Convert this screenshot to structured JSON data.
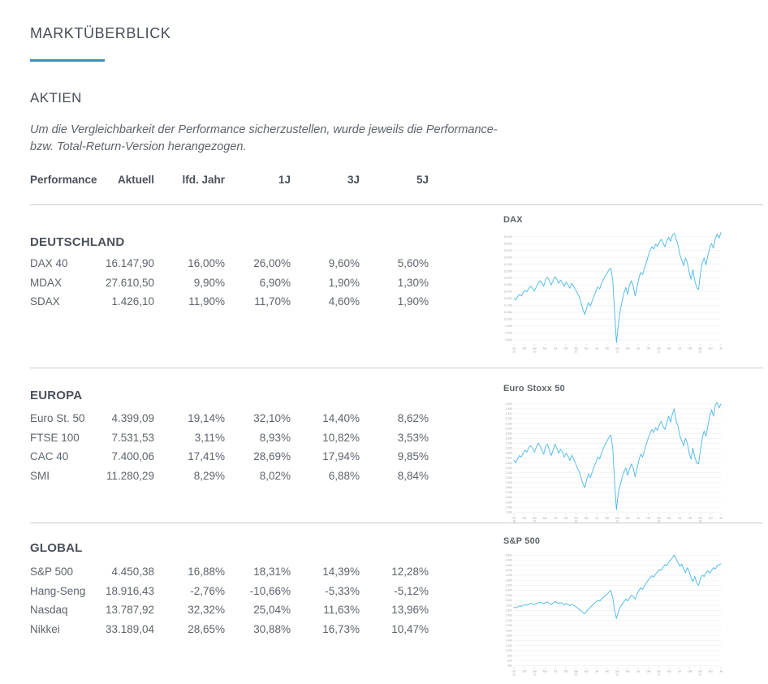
{
  "page": {
    "title": "MARKTÜBERBLICK",
    "section_title": "AKTIEN",
    "disclaimer_line1": "Um die Vergleichbarkeit der Performance sicherzustellen, wurde jeweils die Performance-",
    "disclaimer_line2": "bzw. Total-Return-Version herangezogen.",
    "accent_color": "#4189cf"
  },
  "table": {
    "headers": [
      "Performance",
      "Aktuell",
      "lfd. Jahr",
      "1J",
      "3J",
      "5J"
    ],
    "sections": [
      {
        "name": "DEUTSCHLAND",
        "rows": [
          [
            "DAX 40",
            "16.147,90",
            "16,00%",
            "26,00%",
            "9,60%",
            "5,60%"
          ],
          [
            "MDAX",
            "27.610,50",
            "9,90%",
            "6,90%",
            "1,90%",
            "1,30%"
          ],
          [
            "SDAX",
            "1.426,10",
            "11,90%",
            "11,70%",
            "4,60%",
            "1,90%"
          ]
        ]
      },
      {
        "name": "EUROPA",
        "rows": [
          [
            "Euro St. 50",
            "4.399,09",
            "19,14%",
            "32,10%",
            "14,40%",
            "8,62%"
          ],
          [
            "FTSE 100",
            "7.531,53",
            "3,11%",
            "8,93%",
            "10,82%",
            "3,53%"
          ],
          [
            "CAC 40",
            "7.400,06",
            "17,41%",
            "28,69%",
            "17,94%",
            "9,85%"
          ],
          [
            "SMI",
            "11.280,29",
            "8,29%",
            "8,02%",
            "6,88%",
            "8,84%"
          ]
        ]
      },
      {
        "name": "GLOBAL",
        "rows": [
          [
            "S&P 500",
            "4.450,38",
            "16,88%",
            "18,31%",
            "14,39%",
            "12,28%"
          ],
          [
            "Hang-Seng",
            "18.916,43",
            "-2,76%",
            "-10,66%",
            "-5,33%",
            "-5,12%"
          ],
          [
            "Nasdaq",
            "13.787,92",
            "32,32%",
            "25,04%",
            "11,63%",
            "13,96%"
          ],
          [
            "Nikkei",
            "33.189,04",
            "28,65%",
            "30,88%",
            "16,73%",
            "10,47%"
          ]
        ]
      }
    ]
  },
  "chart_data": [
    {
      "type": "line",
      "title": "DAX",
      "xlabel": "",
      "ylabel": "",
      "color": "#46b8e5",
      "grid": true,
      "legend": "none",
      "y_min": 8200,
      "y_max": 16450,
      "y_ticks": [
        16000,
        15500,
        15000,
        14500,
        14000,
        13500,
        13000,
        12500,
        12000,
        11500,
        11000,
        10500,
        10000,
        9500,
        9000,
        8500
      ],
      "x_ticks": [
        {
          "m": "Jul",
          "y": "18"
        },
        {
          "m": "Okt",
          "y": ""
        },
        {
          "m": "Jan",
          "y": "19"
        },
        {
          "m": "Apr",
          "y": ""
        },
        {
          "m": "Jul",
          "y": ""
        },
        {
          "m": "Okt",
          "y": ""
        },
        {
          "m": "Jan",
          "y": "20"
        },
        {
          "m": "Apr",
          "y": ""
        },
        {
          "m": "Jul",
          "y": ""
        },
        {
          "m": "Okt",
          "y": ""
        },
        {
          "m": "Jan",
          "y": "21"
        },
        {
          "m": "Apr",
          "y": ""
        },
        {
          "m": "Jul",
          "y": ""
        },
        {
          "m": "Okt",
          "y": ""
        },
        {
          "m": "Jan",
          "y": "22"
        },
        {
          "m": "Apr",
          "y": ""
        },
        {
          "m": "Jul",
          "y": ""
        },
        {
          "m": "Okt",
          "y": ""
        },
        {
          "m": "Jan",
          "y": "23"
        },
        {
          "m": "Apr",
          "y": ""
        },
        {
          "m": "Jul",
          "y": ""
        }
      ],
      "series": {
        "name": "DAX",
        "values": [
          11500,
          11400,
          11650,
          11800,
          11700,
          11950,
          12100,
          12000,
          12250,
          12400,
          12250,
          12050,
          12350,
          12600,
          12800,
          12650,
          12400,
          12900,
          13050,
          12800,
          12500,
          12800,
          13100,
          12900,
          12600,
          12850,
          12650,
          12400,
          12700,
          12500,
          12250,
          12600,
          12400,
          12150,
          11900,
          11650,
          11200,
          10700,
          10350,
          10800,
          11200,
          10950,
          11350,
          11700,
          12050,
          12350,
          12200,
          12600,
          12900,
          13150,
          13350,
          13600,
          13700,
          12800,
          10500,
          8300,
          9600,
          10600,
          11300,
          11900,
          12300,
          11800,
          12500,
          12800,
          12400,
          11700,
          12300,
          13000,
          13400,
          13250,
          13700,
          14100,
          14600,
          15000,
          15250,
          15100,
          15450,
          15300,
          15600,
          15800,
          15550,
          15250,
          15700,
          15950,
          15650,
          16100,
          16250,
          15800,
          15400,
          14700,
          14300,
          13900,
          14450,
          14100,
          13400,
          12900,
          13600,
          12800,
          12300,
          12150,
          13300,
          14100,
          14450,
          13950,
          14600,
          15200,
          15500,
          15150,
          15850,
          16200,
          15900,
          16300
        ]
      }
    },
    {
      "type": "line",
      "title": "Euro Stoxx 50",
      "xlabel": "",
      "ylabel": "",
      "color": "#46b8e5",
      "grid": true,
      "legend": "none",
      "y_min": 2270,
      "y_max": 4580,
      "y_ticks": [
        4500,
        4400,
        4300,
        4200,
        4100,
        4000,
        3900,
        3800,
        3700,
        3600,
        3500,
        3400,
        3300,
        3200,
        3100,
        3000,
        2900,
        2800,
        2700,
        2600,
        2500,
        2400,
        2300
      ],
      "x_ticks": [
        {
          "m": "Jul",
          "y": "18"
        },
        {
          "m": "Okt",
          "y": ""
        },
        {
          "m": "Jan",
          "y": "19"
        },
        {
          "m": "Apr",
          "y": ""
        },
        {
          "m": "Jul",
          "y": ""
        },
        {
          "m": "Okt",
          "y": ""
        },
        {
          "m": "Jan",
          "y": "20"
        },
        {
          "m": "Apr",
          "y": ""
        },
        {
          "m": "Jul",
          "y": ""
        },
        {
          "m": "Okt",
          "y": ""
        },
        {
          "m": "Jan",
          "y": "21"
        },
        {
          "m": "Apr",
          "y": ""
        },
        {
          "m": "Jul",
          "y": ""
        },
        {
          "m": "Okt",
          "y": ""
        },
        {
          "m": "Jan",
          "y": "22"
        },
        {
          "m": "Apr",
          "y": ""
        },
        {
          "m": "Jul",
          "y": ""
        },
        {
          "m": "Okt",
          "y": ""
        },
        {
          "m": "Jan",
          "y": "23"
        },
        {
          "m": "Apr",
          "y": ""
        },
        {
          "m": "Jul",
          "y": ""
        }
      ],
      "series": {
        "name": "Euro Stoxx 50",
        "values": [
          3350,
          3300,
          3390,
          3450,
          3420,
          3500,
          3560,
          3520,
          3610,
          3650,
          3600,
          3520,
          3620,
          3700,
          3650,
          3560,
          3480,
          3640,
          3680,
          3560,
          3450,
          3560,
          3680,
          3600,
          3500,
          3580,
          3520,
          3420,
          3500,
          3440,
          3350,
          3460,
          3380,
          3300,
          3200,
          3120,
          3000,
          2880,
          2800,
          2950,
          3080,
          3000,
          3120,
          3220,
          3320,
          3420,
          3380,
          3500,
          3600,
          3680,
          3750,
          3820,
          3870,
          3600,
          2900,
          2350,
          2700,
          2850,
          3000,
          3120,
          3200,
          3050,
          3180,
          3280,
          3200,
          3020,
          3180,
          3350,
          3480,
          3420,
          3550,
          3680,
          3800,
          3900,
          3980,
          3920,
          4020,
          3960,
          4080,
          4150,
          4050,
          3980,
          4120,
          4250,
          4130,
          4300,
          4400,
          4150,
          4050,
          3850,
          3750,
          3650,
          3800,
          3700,
          3500,
          3380,
          3600,
          3420,
          3300,
          3280,
          3550,
          3800,
          3950,
          3850,
          4050,
          4250,
          4380,
          4250,
          4480,
          4530,
          4420,
          4500
        ]
      }
    },
    {
      "type": "line",
      "title": "S&P 500",
      "xlabel": "",
      "ylabel": "",
      "color": "#46b8e5",
      "grid": true,
      "legend": "none",
      "y_min": 350,
      "y_max": 4870,
      "y_ticks": [
        4800,
        4600,
        4400,
        4200,
        4000,
        3800,
        3600,
        3400,
        3200,
        3000,
        2800,
        2600,
        2400,
        2200,
        2000,
        1800,
        1600,
        1400,
        1200,
        1000,
        800,
        600,
        400
      ],
      "x_ticks": [
        {
          "m": "Jul",
          "y": "18"
        },
        {
          "m": "Okt",
          "y": ""
        },
        {
          "m": "Jan",
          "y": "19"
        },
        {
          "m": "Apr",
          "y": ""
        },
        {
          "m": "Jul",
          "y": ""
        },
        {
          "m": "Okt",
          "y": ""
        },
        {
          "m": "Jan",
          "y": "20"
        },
        {
          "m": "Apr",
          "y": ""
        },
        {
          "m": "Jul",
          "y": ""
        },
        {
          "m": "Okt",
          "y": ""
        },
        {
          "m": "Jan",
          "y": "21"
        },
        {
          "m": "Apr",
          "y": ""
        },
        {
          "m": "Jul",
          "y": ""
        },
        {
          "m": "Okt",
          "y": ""
        },
        {
          "m": "Jan",
          "y": "22"
        },
        {
          "m": "Apr",
          "y": ""
        },
        {
          "m": "Jul",
          "y": ""
        },
        {
          "m": "Okt",
          "y": ""
        },
        {
          "m": "Jan",
          "y": "23"
        },
        {
          "m": "Apr",
          "y": ""
        },
        {
          "m": "Jul",
          "y": ""
        }
      ],
      "series": {
        "name": "S&P 500",
        "values": [
          2720,
          2700,
          2740,
          2780,
          2760,
          2800,
          2830,
          2810,
          2850,
          2880,
          2860,
          2840,
          2870,
          2900,
          2930,
          2900,
          2860,
          2910,
          2940,
          2890,
          2840,
          2890,
          2950,
          2920,
          2870,
          2910,
          2880,
          2830,
          2870,
          2840,
          2790,
          2840,
          2800,
          2760,
          2700,
          2650,
          2580,
          2510,
          2470,
          2570,
          2650,
          2720,
          2800,
          2870,
          2940,
          3000,
          2970,
          3050,
          3120,
          3190,
          3250,
          3330,
          3390,
          3100,
          2600,
          2280,
          2550,
          2720,
          2850,
          2950,
          3050,
          2980,
          3100,
          3200,
          3150,
          3050,
          3230,
          3390,
          3500,
          3430,
          3580,
          3700,
          3800,
          3900,
          3980,
          3930,
          4050,
          4130,
          4230,
          4190,
          4320,
          4420,
          4380,
          4520,
          4600,
          4700,
          4800,
          4650,
          4500,
          4350,
          4450,
          4250,
          4100,
          4300,
          4150,
          3900,
          3750,
          3950,
          3700,
          3600,
          3850,
          4000,
          3950,
          4100,
          4180,
          4080,
          4200,
          4300,
          4250,
          4380,
          4420,
          4450
        ]
      }
    }
  ]
}
